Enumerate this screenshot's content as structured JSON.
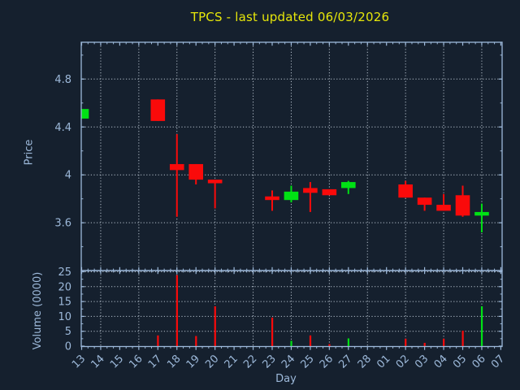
{
  "figure": {
    "title": "TPCS - last updated 06/03/2026",
    "xlabel": "Day",
    "price_ylabel": "Price",
    "volume_ylabel": "Volume (0000)"
  },
  "colors": {
    "background": "#15202e",
    "axis": "#9db9da",
    "tick_text": "#9db9da",
    "title": "#e6e60a",
    "grid": "#b5c0cc",
    "up": "#00e114",
    "down": "#fa0a0a"
  },
  "chart_data": [
    {
      "type": "candlestick",
      "title": "TPCS - last updated 06/03/2026",
      "xlabel": "Day",
      "ylabel": "Price",
      "categories": [
        "13",
        "14",
        "15",
        "16",
        "17",
        "18",
        "19",
        "20",
        "21",
        "22",
        "23",
        "24",
        "25",
        "26",
        "27",
        "28",
        "01",
        "02",
        "03",
        "04",
        "05",
        "06",
        "07"
      ],
      "ytick_labels": [
        "3.6",
        "4",
        "4.4",
        "4.8"
      ],
      "yticks": [
        3.6,
        4.0,
        4.4,
        4.8
      ],
      "ylim": [
        3.2,
        5.11
      ],
      "grid": "dotted, vertical lines every other day starting at 14",
      "legend": "none",
      "candles": [
        {
          "day": "13",
          "open": 4.47,
          "high": 4.55,
          "low": 4.47,
          "close": 4.55
        },
        {
          "day": "17",
          "open": 4.63,
          "high": 4.63,
          "low": 4.45,
          "close": 4.45
        },
        {
          "day": "18",
          "open": 4.09,
          "high": 4.34,
          "low": 3.65,
          "close": 4.04
        },
        {
          "day": "19",
          "open": 4.09,
          "high": 4.09,
          "low": 3.92,
          "close": 3.96
        },
        {
          "day": "20",
          "open": 3.96,
          "high": 3.96,
          "low": 3.72,
          "close": 3.93
        },
        {
          "day": "23",
          "open": 3.82,
          "high": 3.87,
          "low": 3.7,
          "close": 3.79
        },
        {
          "day": "24",
          "open": 3.79,
          "high": 3.91,
          "low": 3.77,
          "close": 3.86
        },
        {
          "day": "25",
          "open": 3.89,
          "high": 3.94,
          "low": 3.69,
          "close": 3.85
        },
        {
          "day": "26",
          "open": 3.88,
          "high": 3.88,
          "low": 3.83,
          "close": 3.83
        },
        {
          "day": "27",
          "open": 3.89,
          "high": 3.95,
          "low": 3.84,
          "close": 3.94
        },
        {
          "day": "02",
          "open": 3.92,
          "high": 3.95,
          "low": 3.81,
          "close": 3.81
        },
        {
          "day": "03",
          "open": 3.81,
          "high": 3.81,
          "low": 3.7,
          "close": 3.75
        },
        {
          "day": "04",
          "open": 3.75,
          "high": 3.84,
          "low": 3.7,
          "close": 3.7
        },
        {
          "day": "05",
          "open": 3.83,
          "high": 3.91,
          "low": 3.65,
          "close": 3.66
        },
        {
          "day": "06",
          "open": 3.66,
          "high": 3.76,
          "low": 3.52,
          "close": 3.69
        }
      ]
    },
    {
      "type": "bar",
      "ylabel": "Volume (0000)",
      "ytick_labels": [
        "0",
        "5",
        "10",
        "15",
        "20",
        "25"
      ],
      "yticks": [
        0,
        5,
        10,
        15,
        20,
        25
      ],
      "ylim": [
        0,
        25.4
      ],
      "bars": [
        {
          "day": "17",
          "value": 3.6,
          "direction": "down"
        },
        {
          "day": "18",
          "value": 23.9,
          "direction": "down"
        },
        {
          "day": "19",
          "value": 3.4,
          "direction": "down"
        },
        {
          "day": "20",
          "value": 13.4,
          "direction": "down"
        },
        {
          "day": "23",
          "value": 9.6,
          "direction": "down"
        },
        {
          "day": "24",
          "value": 1.8,
          "direction": "up"
        },
        {
          "day": "25",
          "value": 3.6,
          "direction": "down"
        },
        {
          "day": "26",
          "value": 0.7,
          "direction": "down"
        },
        {
          "day": "27",
          "value": 2.6,
          "direction": "up"
        },
        {
          "day": "02",
          "value": 2.5,
          "direction": "down"
        },
        {
          "day": "03",
          "value": 1.1,
          "direction": "down"
        },
        {
          "day": "04",
          "value": 2.5,
          "direction": "down"
        },
        {
          "day": "05",
          "value": 5.2,
          "direction": "down"
        },
        {
          "day": "06",
          "value": 13.4,
          "direction": "up"
        }
      ]
    }
  ]
}
